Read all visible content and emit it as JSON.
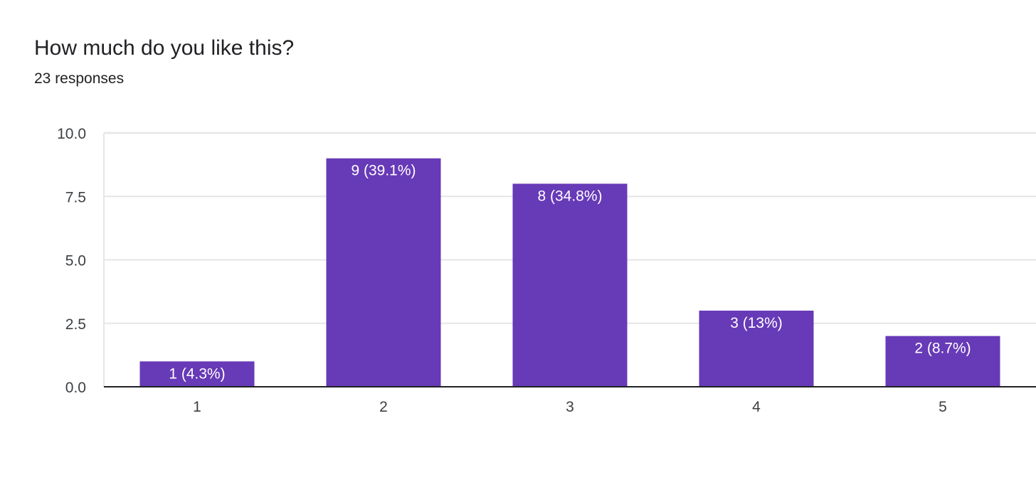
{
  "header": {
    "title": "How much do you like this?",
    "subtitle": "23 responses"
  },
  "colors": {
    "bar": "#673ab7",
    "grid": "#e6e6e6",
    "axis": "#202124",
    "text": "#202124"
  },
  "chart_data": {
    "type": "bar",
    "categories": [
      "1",
      "2",
      "3",
      "4",
      "5"
    ],
    "values": [
      1,
      9,
      8,
      3,
      2
    ],
    "data_labels": [
      "1 (4.3%)",
      "9 (39.1%)",
      "8 (34.8%)",
      "3 (13%)",
      "2 (8.7%)"
    ],
    "ylim": [
      0,
      10
    ],
    "yticks": [
      "0.0",
      "2.5",
      "5.0",
      "7.5",
      "10.0"
    ],
    "ytick_values": [
      0,
      2.5,
      5,
      7.5,
      10
    ],
    "grid": true,
    "legend": "none"
  }
}
